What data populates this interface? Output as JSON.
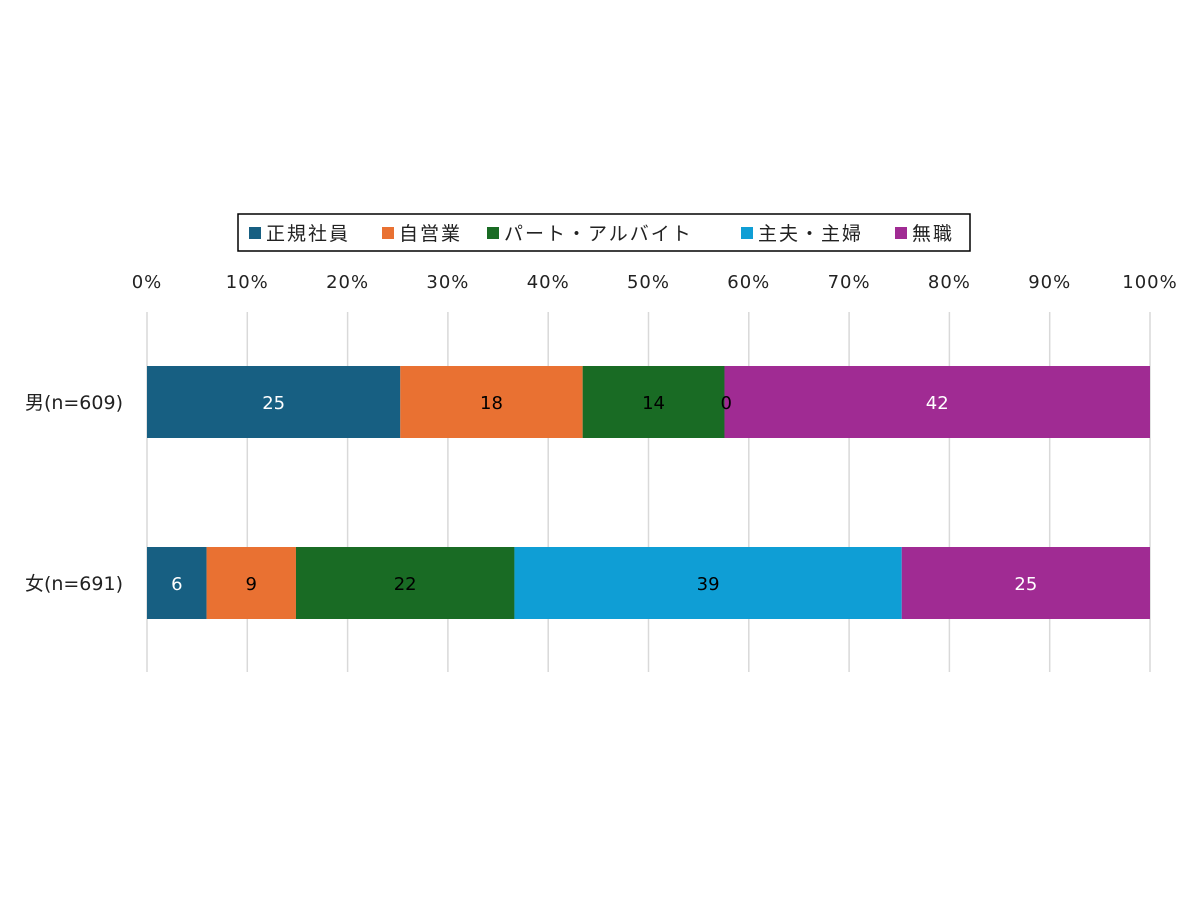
{
  "chart_data": {
    "type": "bar",
    "orientation": "horizontal",
    "stacked": "percent",
    "categories": [
      "男(n=609)",
      "女(n=691)"
    ],
    "series": [
      {
        "name": "正規社員",
        "color": "#175F82",
        "label_color": "#ffffff",
        "values": [
          25,
          6
        ]
      },
      {
        "name": "自営業",
        "color": "#E97132",
        "label_color": "#000000",
        "values": [
          18,
          9
        ]
      },
      {
        "name": "パート・アルバイト",
        "color": "#196B24",
        "label_color": "#000000",
        "values": [
          14,
          22
        ]
      },
      {
        "name": "主夫・主婦",
        "color": "#0F9ED5",
        "label_color": "#000000",
        "values": [
          0,
          39
        ]
      },
      {
        "name": "無職",
        "color": "#A02B93",
        "label_color": "#ffffff",
        "values": [
          42,
          25
        ]
      }
    ],
    "xlim": [
      0,
      100
    ],
    "ticks": [
      "0%",
      "10%",
      "20%",
      "30%",
      "40%",
      "50%",
      "60%",
      "70%",
      "80%",
      "90%",
      "100%"
    ],
    "grid": "vertical",
    "legend": "top"
  }
}
